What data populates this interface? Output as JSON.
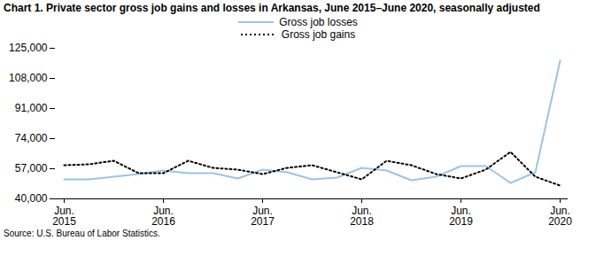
{
  "chart_data": {
    "type": "line",
    "title": "Chart 1. Private sector gross job gains and losses in Arkansas, June 2015–June 2020, seasonally adjusted",
    "source": "Source: U.S. Bureau of Labor Statistics.",
    "categories": [
      "Jun.\n2015",
      null,
      null,
      null,
      "Jun.\n2016",
      null,
      null,
      null,
      "Jun.\n2017",
      null,
      null,
      null,
      "Jun.\n2018",
      null,
      null,
      null,
      "Jun.\n2019",
      null,
      null,
      null,
      "Jun.\n2020"
    ],
    "series": [
      {
        "name": "Gross job losses",
        "color": "#9dc3e6",
        "line_style": "solid",
        "values": [
          51000,
          51000,
          52500,
          54000,
          56000,
          54500,
          54500,
          51500,
          56500,
          55000,
          51000,
          52000,
          57500,
          56000,
          50500,
          52500,
          58500,
          58500,
          49000,
          55000,
          118000
        ]
      },
      {
        "name": "Gross job gains",
        "color": "#000000",
        "line_style": "dotted",
        "values": [
          59000,
          59500,
          61500,
          54500,
          54500,
          61500,
          57500,
          56500,
          54000,
          57500,
          59000,
          55000,
          51000,
          61500,
          59000,
          54000,
          51500,
          56500,
          66500,
          52500,
          47500
        ]
      }
    ],
    "ylim": [
      40000,
      125000
    ],
    "yticks": [
      {
        "value": 40000,
        "label": "40,000"
      },
      {
        "value": 57000,
        "label": "57,000"
      },
      {
        "value": 74000,
        "label": "74,000"
      },
      {
        "value": 91000,
        "label": "91,000"
      },
      {
        "value": 108000,
        "label": "108,000"
      },
      {
        "value": 125000,
        "label": "125,000"
      }
    ],
    "grid": false
  }
}
